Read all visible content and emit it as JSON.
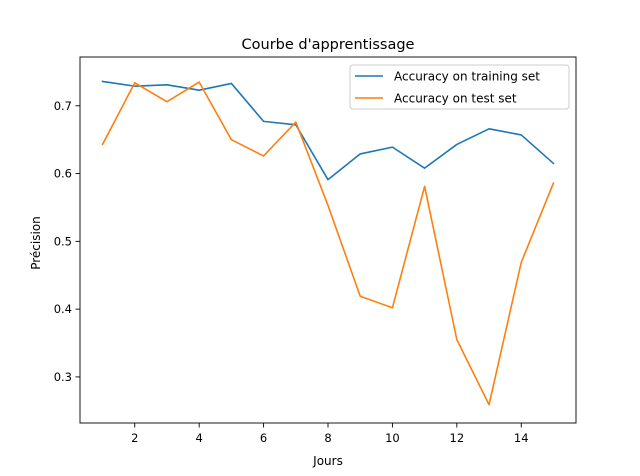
{
  "chart_data": {
    "type": "line",
    "title": "Courbe d'apprentissage",
    "xlabel": "Jours",
    "ylabel": "Précision",
    "xlim": [
      0.3,
      15.7
    ],
    "ylim": [
      0.232,
      0.772
    ],
    "xticks": [
      2,
      4,
      6,
      8,
      10,
      12,
      14
    ],
    "xtick_labels": [
      "2",
      "4",
      "6",
      "8",
      "10",
      "12",
      "14"
    ],
    "yticks": [
      0.3,
      0.4,
      0.5,
      0.6,
      0.7
    ],
    "ytick_labels": [
      "0.3",
      "0.4",
      "0.5",
      "0.6",
      "0.7"
    ],
    "grid": false,
    "legend_position": "top-right",
    "x": [
      1,
      2,
      3,
      4,
      5,
      6,
      7,
      8,
      9,
      10,
      11,
      12,
      13,
      14,
      15
    ],
    "series": [
      {
        "name": "Accuracy on training set",
        "color": "#1f77b4",
        "values": [
          0.736,
          0.729,
          0.731,
          0.723,
          0.733,
          0.677,
          0.672,
          0.591,
          0.629,
          0.639,
          0.608,
          0.643,
          0.666,
          0.657,
          0.615
        ]
      },
      {
        "name": "Accuracy on test set",
        "color": "#ff7f0e",
        "values": [
          0.643,
          0.734,
          0.706,
          0.735,
          0.65,
          0.626,
          0.676,
          0.553,
          0.419,
          0.402,
          0.581,
          0.355,
          0.259,
          0.469,
          0.586
        ]
      }
    ]
  }
}
